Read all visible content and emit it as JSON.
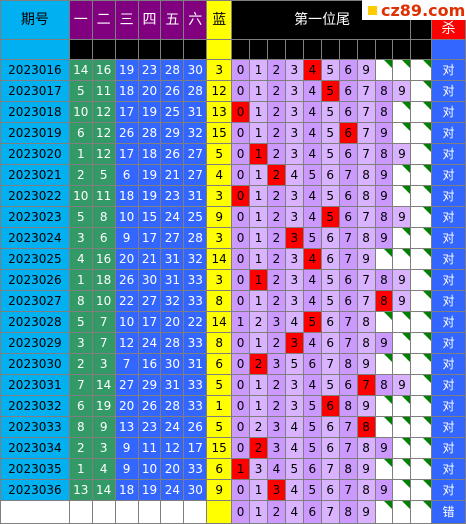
{
  "header": {
    "period": "期号",
    "reds": [
      "一",
      "二",
      "三",
      "四",
      "五",
      "六"
    ],
    "blue": "蓝",
    "wei": "第一位尾",
    "jg": "杀",
    "logo": "cz89.com"
  },
  "rows": [
    {
      "p": "2023016",
      "n": [
        "14",
        "16",
        "19",
        "23",
        "28",
        "30"
      ],
      "b": "3",
      "hit": 4,
      "digits": [
        "0",
        "1",
        "2",
        "3",
        "4",
        "5",
        "6",
        "9"
      ],
      "r": "对"
    },
    {
      "p": "2023017",
      "n": [
        "5",
        "11",
        "18",
        "20",
        "26",
        "28"
      ],
      "b": "12",
      "hit": 5,
      "digits": [
        "0",
        "1",
        "2",
        "3",
        "4",
        "5",
        "6",
        "7",
        "8",
        "9"
      ],
      "r": "对"
    },
    {
      "p": "2023018",
      "n": [
        "10",
        "12",
        "17",
        "19",
        "25",
        "31"
      ],
      "b": "13",
      "hit": 0,
      "digits": [
        "0",
        "1",
        "2",
        "3",
        "4",
        "5",
        "6",
        "7",
        "8"
      ],
      "r": "对"
    },
    {
      "p": "2023019",
      "n": [
        "6",
        "12",
        "26",
        "28",
        "29",
        "32"
      ],
      "b": "15",
      "hit": 6,
      "digits": [
        "0",
        "1",
        "2",
        "3",
        "4",
        "5",
        "6",
        "7",
        "9"
      ],
      "r": "对"
    },
    {
      "p": "2023020",
      "n": [
        "1",
        "12",
        "17",
        "18",
        "26",
        "27"
      ],
      "b": "5",
      "hit": 1,
      "digits": [
        "0",
        "1",
        "2",
        "3",
        "4",
        "5",
        "6",
        "7",
        "8",
        "9"
      ],
      "r": "对"
    },
    {
      "p": "2023021",
      "n": [
        "2",
        "5",
        "6",
        "19",
        "21",
        "27"
      ],
      "b": "4",
      "hit": 2,
      "digits": [
        "0",
        "1",
        "2",
        "4",
        "5",
        "6",
        "7",
        "8",
        "9"
      ],
      "r": "对"
    },
    {
      "p": "2023022",
      "n": [
        "10",
        "11",
        "18",
        "19",
        "23",
        "31"
      ],
      "b": "3",
      "hit": 0,
      "digits": [
        "0",
        "1",
        "2",
        "3",
        "4",
        "5",
        "6",
        "8",
        "9"
      ],
      "r": "对"
    },
    {
      "p": "2023023",
      "n": [
        "5",
        "8",
        "10",
        "15",
        "24",
        "25"
      ],
      "b": "9",
      "hit": 5,
      "digits": [
        "0",
        "1",
        "2",
        "3",
        "4",
        "5",
        "6",
        "7",
        "8",
        "9"
      ],
      "r": "对"
    },
    {
      "p": "2023024",
      "n": [
        "3",
        "6",
        "9",
        "17",
        "27",
        "28"
      ],
      "b": "3",
      "hit": 3,
      "digits": [
        "0",
        "1",
        "2",
        "3",
        "5",
        "6",
        "7",
        "8",
        "9"
      ],
      "r": "对"
    },
    {
      "p": "2023025",
      "n": [
        "4",
        "16",
        "20",
        "21",
        "31",
        "32"
      ],
      "b": "14",
      "hit": 4,
      "digits": [
        "0",
        "1",
        "2",
        "3",
        "4",
        "6",
        "7",
        "9"
      ],
      "r": "对"
    },
    {
      "p": "2023026",
      "n": [
        "1",
        "18",
        "26",
        "30",
        "31",
        "33"
      ],
      "b": "3",
      "hit": 1,
      "digits": [
        "0",
        "1",
        "2",
        "3",
        "4",
        "5",
        "6",
        "7",
        "8",
        "9"
      ],
      "r": "对"
    },
    {
      "p": "2023027",
      "n": [
        "8",
        "10",
        "22",
        "27",
        "32",
        "33"
      ],
      "b": "8",
      "hit": 8,
      "digits": [
        "0",
        "1",
        "2",
        "3",
        "4",
        "5",
        "6",
        "7",
        "8",
        "9"
      ],
      "r": "对"
    },
    {
      "p": "2023028",
      "n": [
        "5",
        "7",
        "10",
        "17",
        "20",
        "22"
      ],
      "b": "14",
      "hit": 5,
      "digits": [
        "1",
        "2",
        "3",
        "4",
        "5",
        "6",
        "7",
        "8"
      ],
      "r": "对"
    },
    {
      "p": "2023029",
      "n": [
        "3",
        "7",
        "12",
        "24",
        "28",
        "33"
      ],
      "b": "8",
      "hit": 3,
      "digits": [
        "0",
        "1",
        "2",
        "3",
        "4",
        "6",
        "7",
        "8",
        "9"
      ],
      "r": "对"
    },
    {
      "p": "2023030",
      "n": [
        "2",
        "3",
        "7",
        "16",
        "30",
        "31"
      ],
      "b": "6",
      "hit": 2,
      "digits": [
        "0",
        "2",
        "3",
        "5",
        "6",
        "7",
        "8",
        "9"
      ],
      "r": "对"
    },
    {
      "p": "2023031",
      "n": [
        "7",
        "14",
        "27",
        "29",
        "31",
        "33"
      ],
      "b": "5",
      "hit": 7,
      "digits": [
        "0",
        "1",
        "2",
        "3",
        "4",
        "5",
        "6",
        "7",
        "8",
        "9"
      ],
      "r": "对"
    },
    {
      "p": "2023032",
      "n": [
        "6",
        "19",
        "20",
        "26",
        "28",
        "33"
      ],
      "b": "1",
      "hit": 6,
      "digits": [
        "0",
        "1",
        "2",
        "3",
        "5",
        "6",
        "8",
        "9"
      ],
      "r": "对"
    },
    {
      "p": "2023033",
      "n": [
        "8",
        "9",
        "13",
        "23",
        "24",
        "26"
      ],
      "b": "5",
      "hit": 8,
      "digits": [
        "0",
        "2",
        "3",
        "4",
        "5",
        "6",
        "7",
        "8"
      ],
      "r": "对"
    },
    {
      "p": "2023034",
      "n": [
        "2",
        "3",
        "9",
        "11",
        "12",
        "17"
      ],
      "b": "15",
      "hit": 2,
      "digits": [
        "0",
        "2",
        "3",
        "4",
        "5",
        "6",
        "7",
        "8",
        "9"
      ],
      "r": "对"
    },
    {
      "p": "2023035",
      "n": [
        "1",
        "4",
        "9",
        "10",
        "20",
        "33"
      ],
      "b": "6",
      "hit": 1,
      "digits": [
        "1",
        "3",
        "4",
        "5",
        "6",
        "7",
        "8",
        "9"
      ],
      "r": "对"
    },
    {
      "p": "2023036",
      "n": [
        "13",
        "14",
        "18",
        "19",
        "24",
        "30"
      ],
      "b": "9",
      "hit": 3,
      "digits": [
        "0",
        "1",
        "3",
        "4",
        "5",
        "6",
        "7",
        "8",
        "9"
      ],
      "r": "对"
    }
  ],
  "predict": {
    "digits": [
      "0",
      "1",
      "2",
      "4",
      "6",
      "7",
      "8",
      "9"
    ],
    "r": "错"
  }
}
